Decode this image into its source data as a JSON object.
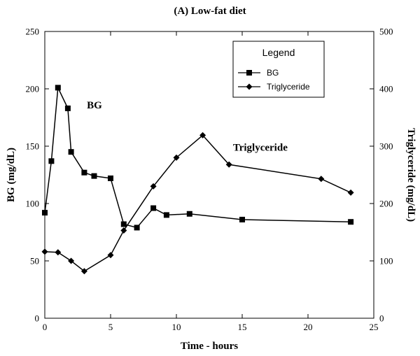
{
  "chart_data": {
    "type": "line",
    "title": "(A) Low-fat diet",
    "xlabel": "Time - hours",
    "ylabel": "BG (mg/dL)",
    "y2label": "Triglyceride (mg/dL)",
    "xlim": [
      0,
      25
    ],
    "ylim": [
      0,
      250
    ],
    "y2lim": [
      0,
      500
    ],
    "xticks": [
      0,
      5,
      10,
      15,
      20,
      25
    ],
    "yticks": [
      0,
      50,
      100,
      150,
      200,
      250
    ],
    "y2ticks": [
      0,
      100,
      200,
      300,
      400,
      500
    ],
    "grid": false,
    "legend": {
      "title": "Legend",
      "position": "top-right",
      "entries": [
        "BG",
        "Triglyceride"
      ]
    },
    "series": [
      {
        "name": "BG",
        "axis": "left",
        "marker": "square",
        "x": [
          0,
          0.5,
          1,
          1.75,
          2,
          3,
          3.75,
          5,
          6,
          7,
          8.25,
          9.25,
          11,
          15,
          23.25
        ],
        "values": [
          92,
          137,
          201,
          183,
          145,
          127,
          124,
          122,
          82,
          79,
          96,
          90,
          91,
          86,
          84
        ]
      },
      {
        "name": "Triglyceride",
        "axis": "right",
        "marker": "diamond",
        "x": [
          0,
          1,
          2,
          3,
          5,
          6,
          8.25,
          10,
          12,
          14,
          21,
          23.25
        ],
        "values": [
          116,
          115,
          100,
          82,
          110,
          153,
          230,
          280,
          319,
          268,
          243,
          219
        ]
      }
    ],
    "annotations": [
      {
        "text": "BG",
        "x": 3.2,
        "y": 183
      },
      {
        "text": "Triglyceride",
        "x": 14.3,
        "y": 146
      }
    ]
  }
}
